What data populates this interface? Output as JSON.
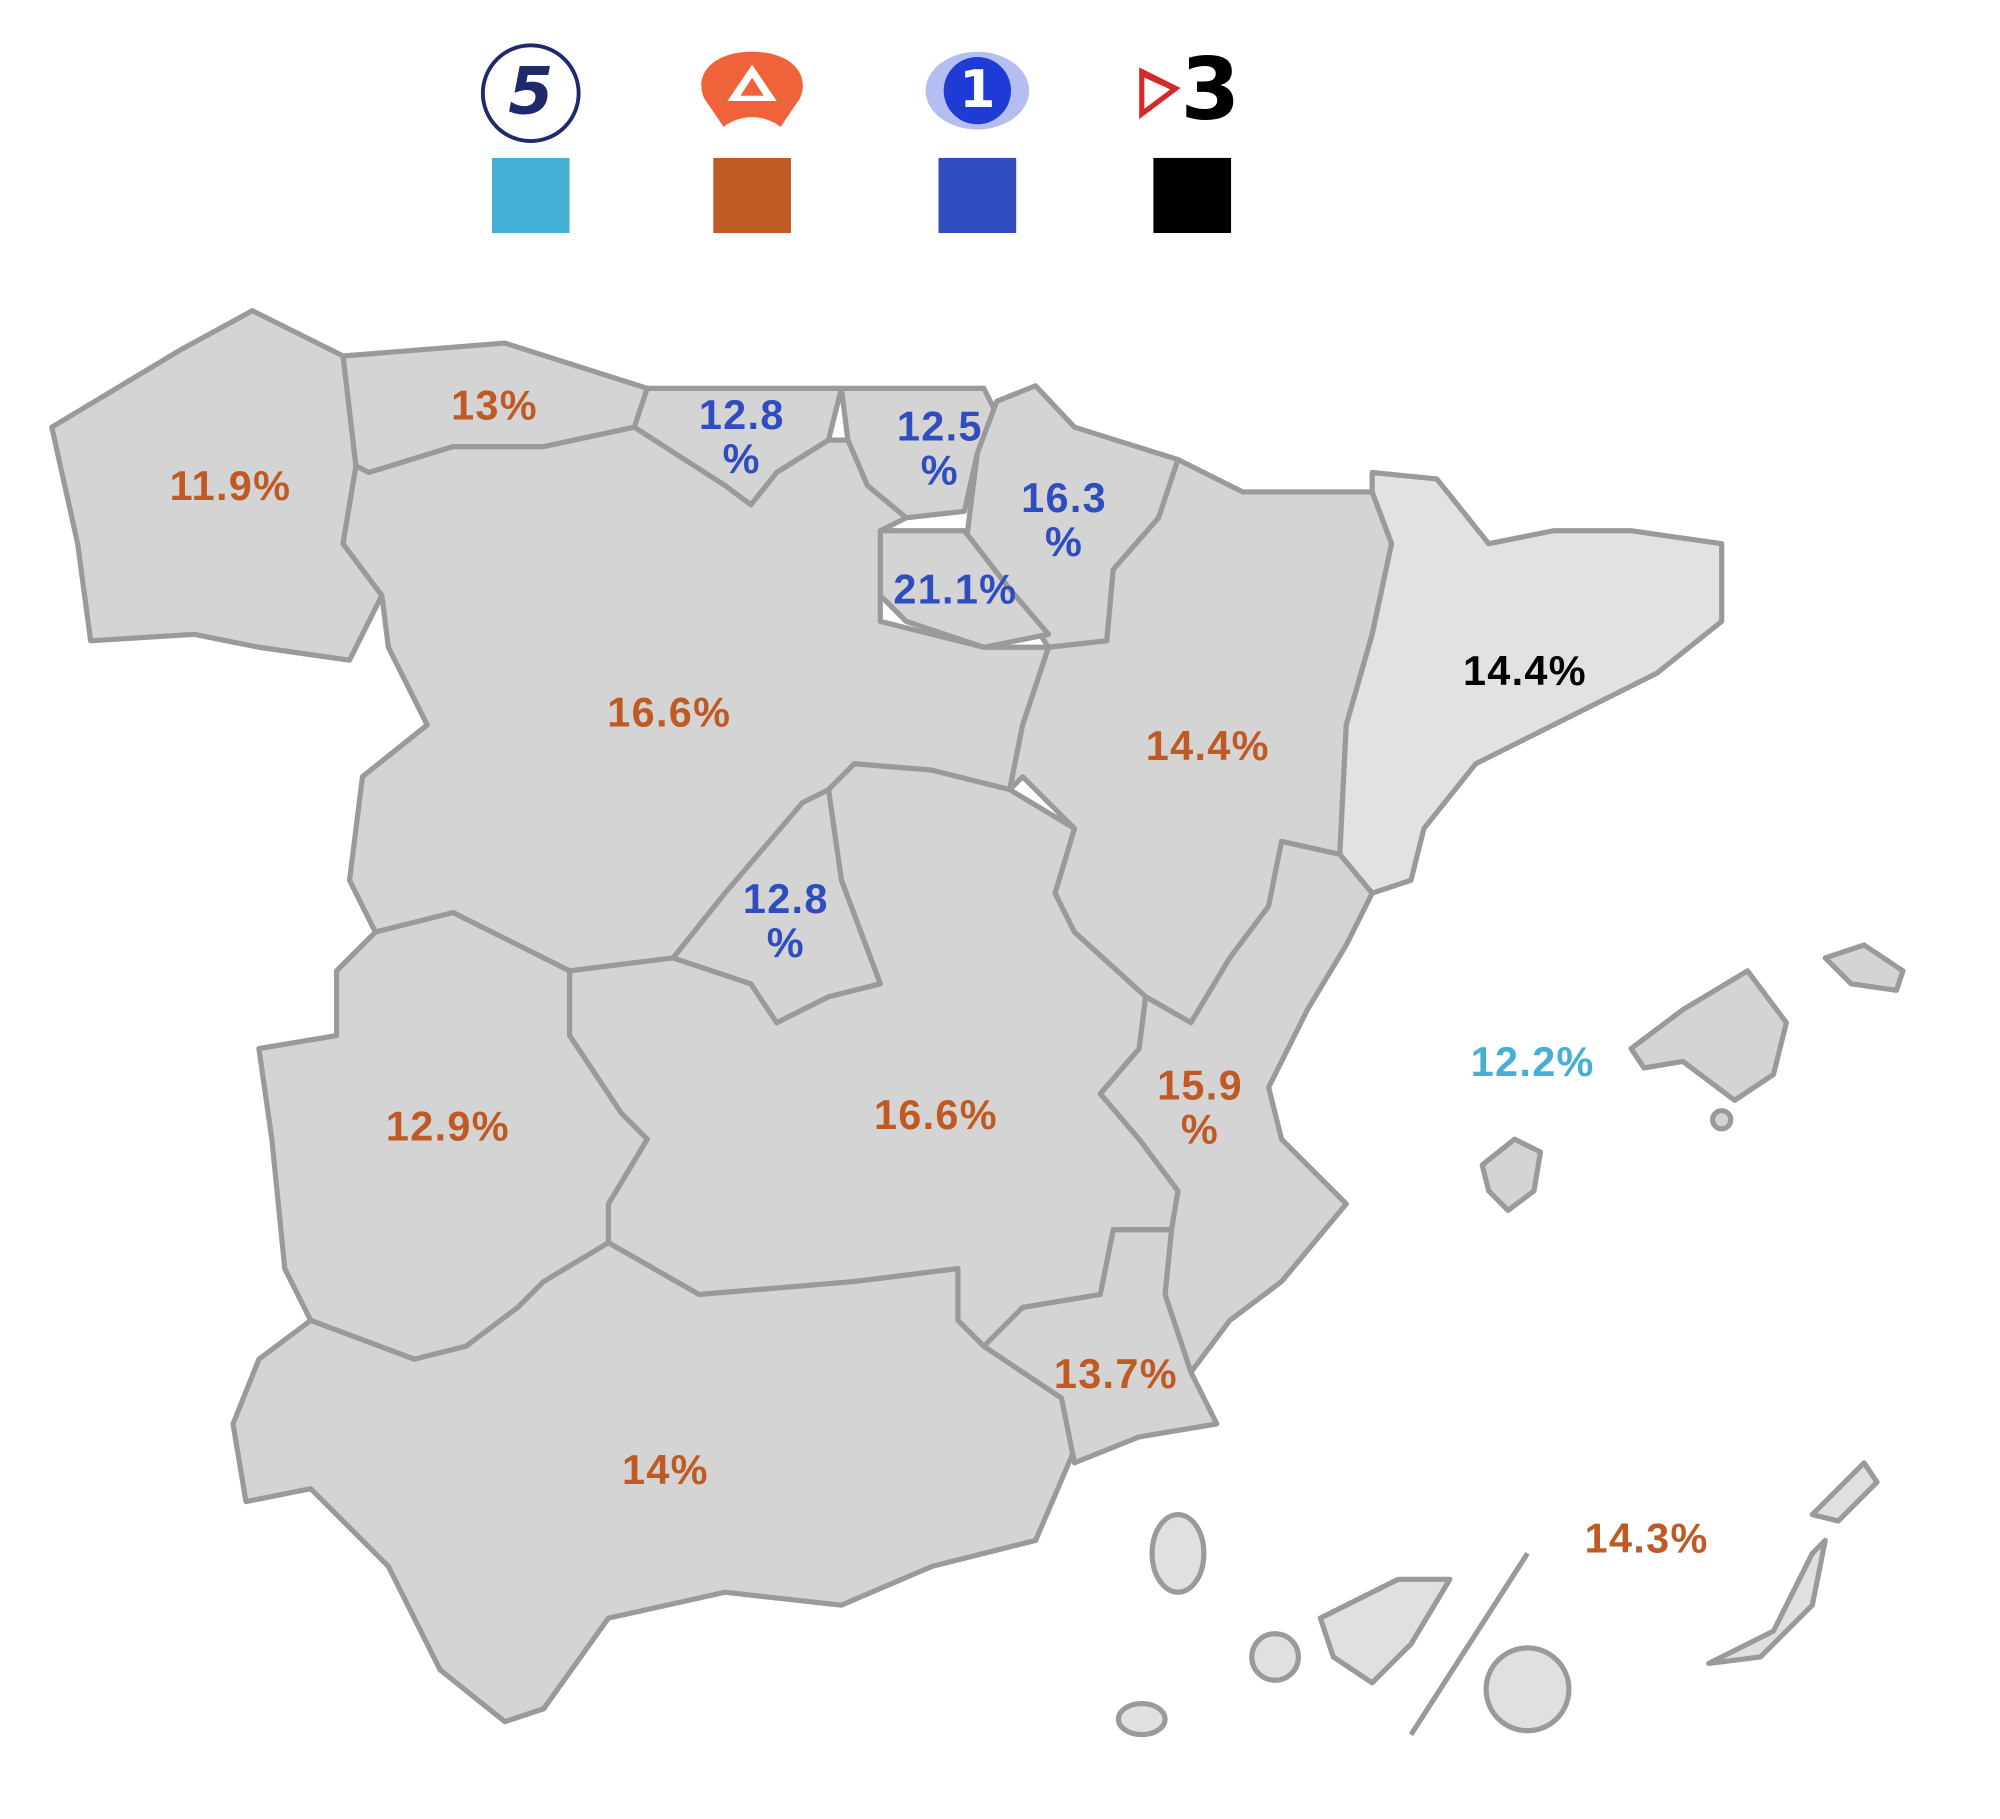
{
  "legend": [
    {
      "logo_text": "5",
      "color": "#46afd6"
    },
    {
      "color": "#c05a24"
    },
    {
      "logo_text": "1",
      "color": "#2f4dbf"
    },
    {
      "logo_text": "3",
      "color": "#000000"
    }
  ],
  "regions": [
    {
      "value": 11.9,
      "value_label": "11.9%",
      "color": "#c05a24"
    },
    {
      "value": 13,
      "value_label": "13%",
      "color": "#c05a24"
    },
    {
      "value": 12.8,
      "value_label": "12.8%",
      "color": "#2f4dbf"
    },
    {
      "value": 12.5,
      "value_label": "12.5%",
      "color": "#2f4dbf"
    },
    {
      "value": 16.3,
      "value_label": "16.3%",
      "color": "#2f4dbf"
    },
    {
      "value": 21.1,
      "value_label": "21.1%",
      "color": "#2f4dbf"
    },
    {
      "value": 16.6,
      "value_label": "16.6%",
      "color": "#c05a24"
    },
    {
      "value": 14.4,
      "value_label": "14.4%",
      "color": "#c05a24"
    },
    {
      "value": 14.4,
      "value_label": "14.4%",
      "color": "#000000"
    },
    {
      "value": 12.8,
      "value_label": "12.8%",
      "color": "#2f4dbf"
    },
    {
      "value": 12.9,
      "value_label": "12.9%",
      "color": "#c05a24"
    },
    {
      "value": 16.6,
      "value_label": "16.6%",
      "color": "#c05a24"
    },
    {
      "value": 15.9,
      "value_label": "15.9%",
      "color": "#c05a24"
    },
    {
      "value": 12.2,
      "value_label": "12.2%",
      "color": "#46afd6"
    },
    {
      "value": 13.7,
      "value_label": "13.7%",
      "color": "#c05a24"
    },
    {
      "value": 14,
      "value_label": "14%",
      "color": "#c05a24"
    },
    {
      "value": 14.3,
      "value_label": "14.3%",
      "color": "#c05a24"
    }
  ]
}
